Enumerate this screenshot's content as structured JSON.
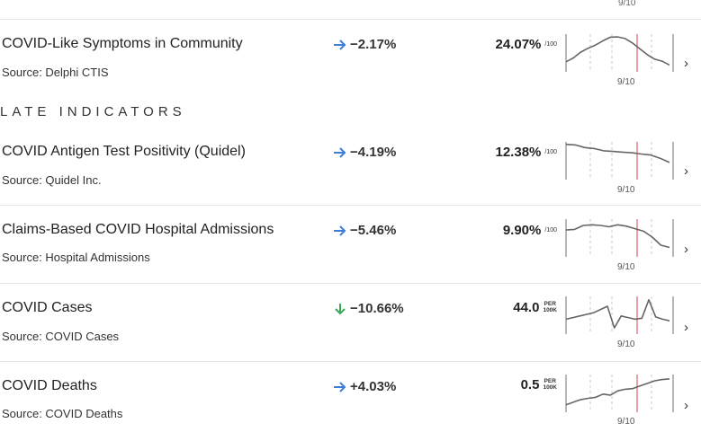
{
  "top_partial": {
    "date": "9/10"
  },
  "section_late": "LATE INDICATORS",
  "rows": [
    {
      "name": "COVID-Like Symptoms in Community",
      "source": "Source: Delphi CTIS",
      "change": "−2.17%",
      "trend": "steady",
      "value": "24.07%",
      "unit": "/100",
      "date": "9/10",
      "spark": [
        0.2,
        0.32,
        0.5,
        0.62,
        0.72,
        0.85,
        0.96,
        0.97,
        0.92,
        0.78,
        0.6,
        0.42,
        0.28,
        0.22,
        0.1
      ]
    },
    {
      "name": "COVID Antigen Test Positivity (Quidel)",
      "source": "Source: Quidel Inc.",
      "change": "−4.19%",
      "trend": "steady",
      "value": "12.38%",
      "unit": "/100",
      "date": "9/10",
      "spark": [
        0.98,
        0.96,
        0.88,
        0.85,
        0.78,
        0.76,
        0.74,
        0.72,
        0.68,
        0.65,
        0.55,
        0.42
      ]
    },
    {
      "name": "Claims-Based COVID Hospital Admissions",
      "source": "Source: Hospital Admissions",
      "change": "−5.46%",
      "trend": "steady",
      "value": "9.90%",
      "unit": "/100",
      "date": "9/10",
      "spark": [
        0.72,
        0.74,
        0.86,
        0.88,
        0.86,
        0.82,
        0.88,
        0.84,
        0.76,
        0.68,
        0.5,
        0.25,
        0.18
      ]
    },
    {
      "name": "COVID Cases",
      "source": "Source: COVID Cases",
      "change": "−10.66%",
      "trend": "down",
      "value": "44.0",
      "unit_top": "PER",
      "unit_bottom": "100K",
      "date": "9/10",
      "spark": [
        0.35,
        0.4,
        0.45,
        0.5,
        0.55,
        0.65,
        0.75,
        0.08,
        0.45,
        0.4,
        0.35,
        0.38,
        0.95,
        0.42,
        0.35,
        0.3
      ]
    },
    {
      "name": "COVID Deaths",
      "source": "Source: COVID Deaths",
      "change": "+4.03%",
      "trend": "steady",
      "value": "0.5",
      "unit_top": "PER",
      "unit_bottom": "100K",
      "date": "9/10",
      "spark": [
        0.12,
        0.2,
        0.28,
        0.32,
        0.35,
        0.45,
        0.42,
        0.55,
        0.6,
        0.62,
        0.7,
        0.78,
        0.86,
        0.9,
        0.92
      ]
    }
  ],
  "colors": {
    "steady_arrow": "#3b7dd8",
    "down_arrow": "#3aa657",
    "today_line": "#e0626b",
    "spark_line": "#666666",
    "guide": "#c8c8c8"
  }
}
